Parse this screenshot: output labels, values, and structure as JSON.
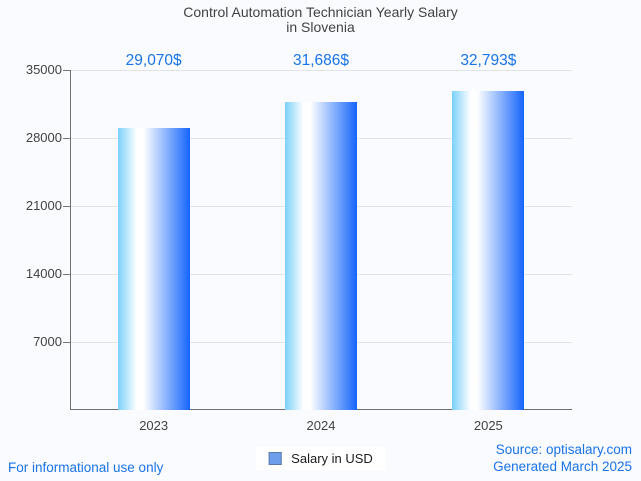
{
  "chart_data": {
    "type": "bar",
    "title": "Control Automation Technician Yearly Salary in Slovenia",
    "title_lines": [
      "Control Automation Technician Yearly Salary",
      "in Slovenia"
    ],
    "categories": [
      "2023",
      "2024",
      "2025"
    ],
    "values": [
      29070,
      31686,
      32793
    ],
    "value_labels": [
      "29,070$",
      "31,686$",
      "32,793$"
    ],
    "series": [
      {
        "name": "Salary in USD",
        "values": [
          29070,
          31686,
          32793
        ]
      }
    ],
    "xlabel": "",
    "ylabel": "",
    "ylim": [
      0,
      35000
    ],
    "yticks": [
      7000,
      14000,
      21000,
      28000,
      35000
    ],
    "ytick_labels": [
      "7000",
      "14000",
      "21000",
      "28000",
      "35000"
    ],
    "grid": true,
    "legend_position": "bottom",
    "bar_gradient": [
      "#7bd1f9",
      "#ffffff",
      "#1565fb"
    ],
    "value_label_color": "#1a73e8",
    "axis_color": "#6f6f6f",
    "gridline_color": "#e3e4e7"
  },
  "legend": {
    "label": "Salary in USD",
    "swatch_fill": "#6d9eeb",
    "swatch_border": "#5a7ba8"
  },
  "footer": {
    "left_note": "For informational use only",
    "source": "Source: optisalary.com",
    "generated": "Generated March 2025",
    "link_color": "#1a73e8"
  },
  "background_color": "#f9fbfe"
}
